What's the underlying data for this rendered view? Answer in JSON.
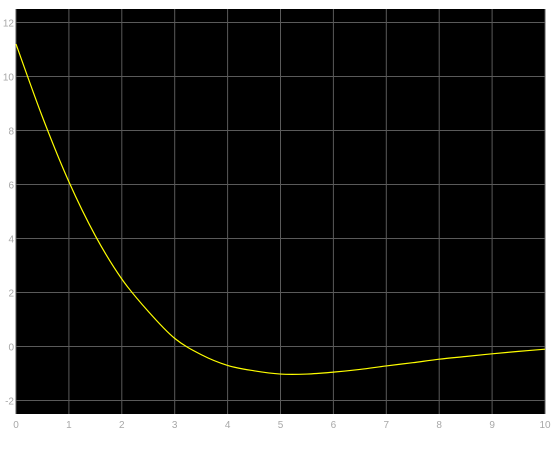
{
  "chart_data": {
    "type": "line",
    "title": "",
    "xlabel": "",
    "ylabel": "",
    "xlim": [
      0,
      10
    ],
    "ylim": [
      -2.5,
      12.5
    ],
    "grid": true,
    "legend": "none",
    "x_ticks": [
      0,
      1,
      2,
      3,
      4,
      5,
      6,
      7,
      8,
      9,
      10
    ],
    "x_tick_labels": [
      "0",
      "1",
      "2",
      "3",
      "4",
      "5",
      "6",
      "7",
      "8",
      "9",
      "10"
    ],
    "y_ticks": [
      -2,
      0,
      2,
      4,
      6,
      8,
      10,
      12
    ],
    "y_tick_labels": [
      "-2",
      "0",
      "2",
      "4",
      "6",
      "8",
      "10",
      "12"
    ],
    "colors": {
      "background": "#000000",
      "grid": "#5a5a5a",
      "series": "#ffff00",
      "tick_text": "#a8a8a8"
    },
    "series": [
      {
        "x": [
          0,
          0.5,
          1,
          1.5,
          2,
          2.5,
          3,
          3.5,
          4,
          4.5,
          5,
          5.5,
          6,
          6.5,
          7,
          7.5,
          8,
          8.5,
          9,
          9.5,
          10
        ],
        "y": [
          11.2,
          8.5,
          6.1,
          4.1,
          2.5,
          1.3,
          0.3,
          -0.3,
          -0.7,
          -0.9,
          -1.02,
          -1.02,
          -0.95,
          -0.85,
          -0.72,
          -0.6,
          -0.47,
          -0.37,
          -0.27,
          -0.18,
          -0.1
        ]
      }
    ]
  }
}
